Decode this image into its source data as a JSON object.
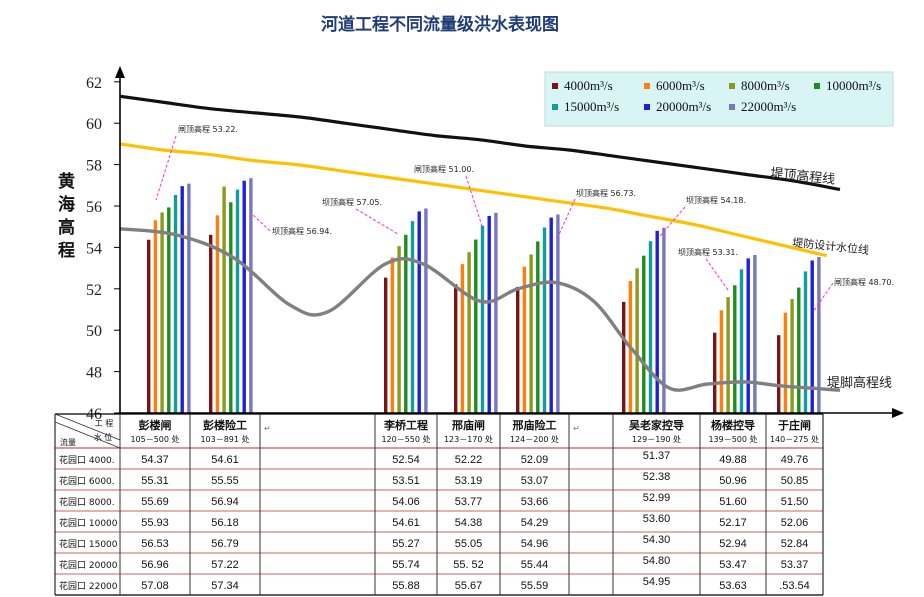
{
  "chart_data": {
    "type": "bar",
    "title": "河道工程不同流量级洪水表现图",
    "ylabel": "黄海高程",
    "ylim": [
      46,
      62
    ],
    "yticks": [
      46,
      48,
      50,
      52,
      54,
      56,
      58,
      60,
      62
    ],
    "legend_position": "top-right",
    "colors": [
      "#7b1416",
      "#ff7f0e",
      "#8a9a1b",
      "#1e8c1e",
      "#139c9c",
      "#1f1fd8",
      "#7777c0"
    ],
    "series": [
      {
        "name": "4000m³/s",
        "values": [
          54.37,
          54.61,
          52.54,
          52.22,
          52.09,
          51.37,
          49.88,
          49.76
        ]
      },
      {
        "name": "6000m³/s",
        "values": [
          55.31,
          55.55,
          53.51,
          53.19,
          53.07,
          52.38,
          50.96,
          50.85
        ]
      },
      {
        "name": "8000m³/s",
        "values": [
          55.69,
          56.94,
          54.06,
          53.77,
          53.66,
          52.99,
          51.6,
          51.5
        ]
      },
      {
        "name": "10000m³/s",
        "values": [
          55.93,
          56.18,
          54.61,
          54.38,
          54.29,
          53.6,
          52.17,
          52.06
        ]
      },
      {
        "name": "15000m³/s",
        "values": [
          56.53,
          56.79,
          55.27,
          55.05,
          54.96,
          54.3,
          52.94,
          52.84
        ]
      },
      {
        "name": "20000m³/s",
        "values": [
          56.96,
          57.22,
          55.74,
          55.52,
          55.44,
          54.8,
          53.47,
          53.37
        ]
      },
      {
        "name": "22000m³/s",
        "values": [
          57.08,
          57.34,
          55.88,
          55.67,
          55.59,
          54.95,
          53.63,
          53.54
        ]
      }
    ],
    "curves": {
      "dam_top": {
        "label": "堤顶高程线",
        "color": "#111111",
        "points": [
          [
            0,
            61.3
          ],
          [
            1,
            61.0
          ],
          [
            2,
            60.7
          ],
          [
            3,
            60.5
          ],
          [
            4,
            60.3
          ],
          [
            5,
            60.0
          ],
          [
            6,
            59.7
          ],
          [
            7,
            59.4
          ],
          [
            8,
            59.2
          ],
          [
            9,
            58.9
          ],
          [
            10,
            58.7
          ],
          [
            11,
            58.4
          ],
          [
            12,
            58.1
          ],
          [
            13,
            57.8
          ],
          [
            14,
            57.5
          ],
          [
            15,
            57.2
          ],
          [
            16,
            56.8
          ]
        ]
      },
      "design_level": {
        "label": "堤防设计水位线",
        "color": "#ffc000",
        "points": [
          [
            0,
            59.0
          ],
          [
            1,
            58.7
          ],
          [
            2,
            58.5
          ],
          [
            3,
            58.2
          ],
          [
            4,
            58.0
          ],
          [
            5,
            57.7
          ],
          [
            6,
            57.4
          ],
          [
            7,
            57.1
          ],
          [
            8,
            56.8
          ],
          [
            9,
            56.5
          ],
          [
            10,
            56.2
          ],
          [
            11,
            55.9
          ],
          [
            12,
            55.5
          ],
          [
            13,
            55.1
          ],
          [
            14,
            54.6
          ],
          [
            15,
            54.1
          ],
          [
            16,
            53.6
          ]
        ]
      },
      "dam_foot": {
        "label": "堤脚高程线",
        "color": "#808080",
        "points": [
          [
            0,
            54.9
          ],
          [
            1.5,
            54.6
          ],
          [
            3,
            53.5
          ],
          [
            4.5,
            51.2
          ],
          [
            5.5,
            50.9
          ],
          [
            7,
            53.2
          ],
          [
            8,
            53.2
          ],
          [
            9.5,
            51.4
          ],
          [
            10.5,
            52.0
          ],
          [
            11.5,
            52.3
          ],
          [
            12.5,
            51.4
          ],
          [
            13.5,
            49.1
          ],
          [
            14.5,
            47.2
          ],
          [
            15.5,
            47.4
          ],
          [
            16.5,
            47.5
          ],
          [
            17.5,
            47.3
          ],
          [
            19,
            47.1
          ]
        ]
      }
    },
    "annotations": [
      {
        "text": "闸顶高程 53.22."
      },
      {
        "text": "坝顶高程 56.94."
      },
      {
        "text": "坝顶高程 57.05."
      },
      {
        "text": "闸顶高程 51.00."
      },
      {
        "text": "坝顶高程 56.73."
      },
      {
        "text": "坝顶高程 54.18."
      },
      {
        "text": "坝顶高程 53.31."
      },
      {
        "text": "闸顶高程 48.70."
      }
    ]
  },
  "table": {
    "corner_top": "工 程",
    "corner_mid": "水 位",
    "corner_bottom": "流量",
    "columns": [
      {
        "name": "彭楼闸",
        "range": "105－500 处"
      },
      {
        "name": "彭楼险工",
        "range": "103－891 处"
      },
      {
        "name": "",
        "range": ""
      },
      {
        "name": "李桥工程",
        "range": "120－550 处"
      },
      {
        "name": "邢庙闸",
        "range": "123－170 处"
      },
      {
        "name": "邢庙险工",
        "range": "124－200 处"
      },
      {
        "name": "",
        "range": ""
      },
      {
        "name": "吴老家控导",
        "range": "129－190 处"
      },
      {
        "name": "杨楼控导",
        "range": "139－500 处"
      },
      {
        "name": "于庄闸",
        "range": "140－275 处"
      }
    ],
    "rows": [
      {
        "label": "花园口 4000.",
        "values": [
          "54.37",
          "54.61",
          "",
          "52.54",
          "52.22",
          "52.09",
          "",
          "51.37",
          "49.88",
          "49.76"
        ]
      },
      {
        "label": "花园口 6000.",
        "values": [
          "55.31",
          "55.55",
          "",
          "53.51",
          "53.19",
          "53.07",
          "",
          "52.38",
          "50.96",
          "50.85"
        ]
      },
      {
        "label": "花园口 8000.",
        "values": [
          "55.69",
          "56.94",
          "",
          "54.06",
          "53.77",
          "53.66",
          "",
          "52.99",
          "51.60",
          "51.50"
        ]
      },
      {
        "label": "花园口 10000",
        "values": [
          "55.93",
          "56.18",
          "",
          "54.61",
          "54.38",
          "54.29",
          "",
          "53.60",
          "52.17",
          "52.06"
        ]
      },
      {
        "label": "花园口 15000",
        "values": [
          "56.53",
          "56.79",
          "",
          "55.27",
          "55.05",
          "54.96",
          "",
          "54.30",
          "52.94",
          "52.84"
        ]
      },
      {
        "label": "花园口 20000",
        "values": [
          "56.96",
          "57.22",
          "",
          "55.74",
          "55. 52",
          "55.44",
          "",
          "54.80",
          "53.47",
          "53.37"
        ]
      },
      {
        "label": "花园口 22000",
        "values": [
          "57.08",
          "57.34",
          "",
          "55.88",
          "55.67",
          "55.59",
          "",
          "54.95",
          "53.63",
          ".53.54"
        ]
      }
    ]
  }
}
